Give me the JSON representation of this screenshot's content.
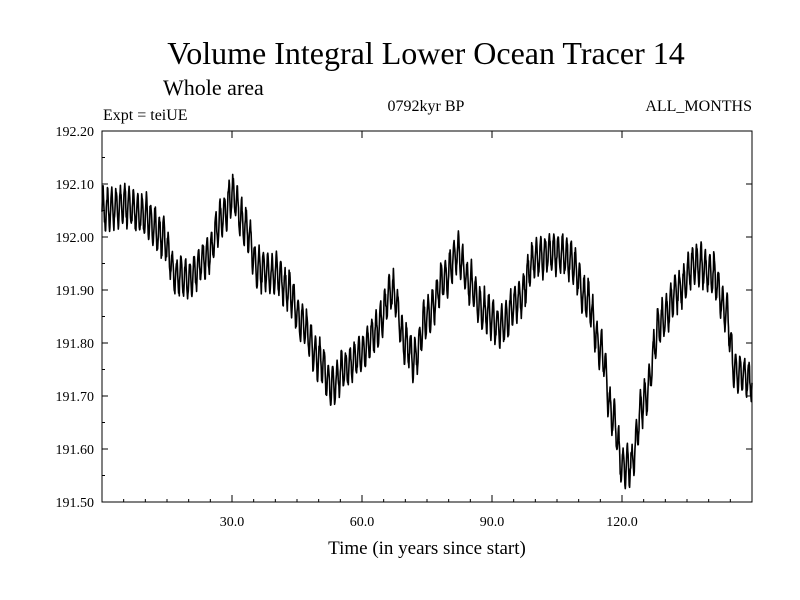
{
  "chart_data": {
    "type": "line",
    "title": "Volume Integral Lower Ocean Tracer 14",
    "subtitle": "Whole area",
    "experiment_label": "Expt = teiUE",
    "period_label": "0792kyr BP",
    "months_label": "ALL_MONTHS",
    "xlabel": "Time (in years since start)",
    "ylabel": "",
    "xlim": [
      0,
      150
    ],
    "ylim": [
      191.5,
      192.2
    ],
    "xticks": [
      30,
      60,
      90,
      120
    ],
    "xtick_labels": [
      "30.0",
      "60.0",
      "90.0",
      "120.0"
    ],
    "yticks": [
      191.5,
      191.6,
      191.7,
      191.8,
      191.9,
      192.0,
      192.1,
      192.2
    ],
    "ytick_labels": [
      "191.50",
      "191.60",
      "191.70",
      "191.80",
      "191.90",
      "192.00",
      "192.10",
      "192.20"
    ],
    "series": [
      {
        "name": "Volume Integral Lower Ocean Tracer 14",
        "annual_cycle_amplitude": 0.035,
        "sampling": "monthly",
        "trend_x": [
          0,
          5,
          10,
          14,
          17,
          20,
          24,
          28,
          30,
          33,
          36,
          40,
          43,
          46,
          50,
          53,
          56,
          60,
          63,
          67,
          70,
          72,
          75,
          79,
          82,
          85,
          88,
          92,
          96,
          100,
          104,
          108,
          112,
          115,
          118,
          120,
          122,
          125,
          129,
          133,
          137,
          141,
          144,
          146,
          150
        ],
        "trend_y": [
          192.05,
          192.06,
          192.04,
          192.0,
          191.93,
          191.92,
          191.96,
          192.04,
          192.08,
          192.02,
          191.94,
          191.93,
          191.9,
          191.84,
          191.77,
          191.72,
          191.75,
          191.78,
          191.82,
          191.9,
          191.8,
          191.77,
          191.85,
          191.92,
          191.97,
          191.91,
          191.86,
          191.83,
          191.88,
          191.96,
          191.97,
          191.96,
          191.88,
          191.79,
          191.66,
          191.57,
          191.57,
          191.69,
          191.84,
          191.9,
          191.95,
          191.93,
          191.86,
          191.75,
          191.73
        ]
      }
    ]
  }
}
